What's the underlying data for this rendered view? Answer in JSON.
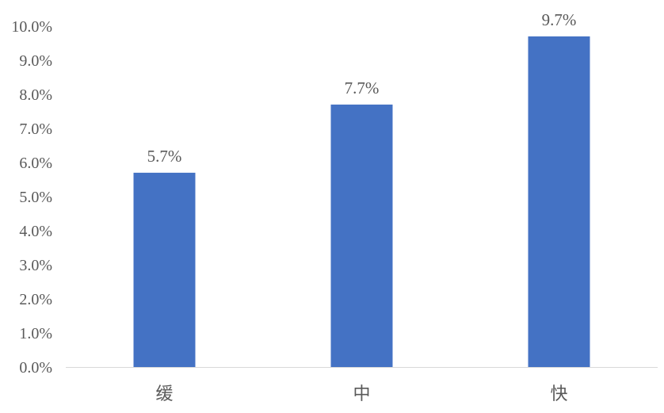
{
  "chart_data": {
    "type": "bar",
    "title": "",
    "xlabel": "",
    "ylabel": "",
    "categories": [
      "缓",
      "中",
      "快"
    ],
    "values": [
      5.7,
      7.7,
      9.7
    ],
    "data_labels": [
      "5.7%",
      "7.7%",
      "9.7%"
    ],
    "ylim": [
      0,
      10
    ],
    "yticks": [
      "0.0%",
      "1.0%",
      "2.0%",
      "3.0%",
      "4.0%",
      "5.0%",
      "6.0%",
      "7.0%",
      "8.0%",
      "9.0%",
      "10.0%"
    ],
    "grid": false,
    "legend": "none",
    "bar_color": "#4472C4"
  }
}
